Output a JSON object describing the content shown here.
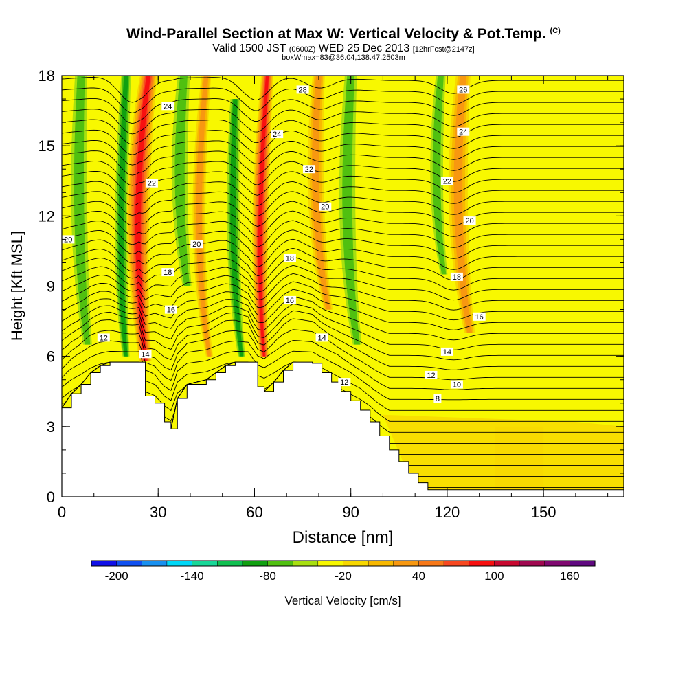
{
  "header": {
    "title": "Wind-Parallel Section at Max W: Vertical Velocity & Pot.Temp.",
    "title_mark": "(C)",
    "subtitle_a": "Valid 1500 JST",
    "subtitle_b": "(0600Z)",
    "subtitle_c": "WED 25 Dec 2013",
    "subtitle_d": "[12hrFcst@2147z]",
    "subtitle2": "boxWmax=83@36.04,138.47,2503m"
  },
  "chart_data": {
    "type": "heatmap",
    "xlabel": "Distance [nm]",
    "ylabel": "Height [Kft MSL]",
    "xlim": [
      0,
      175
    ],
    "ylim": [
      0,
      18
    ],
    "xticks": [
      "0",
      "30",
      "60",
      "90",
      "120",
      "150"
    ],
    "yticks": [
      "0",
      "3",
      "6",
      "9",
      "12",
      "15",
      "18"
    ],
    "colorbar": {
      "label": "Vertical Velocity [cm/s]",
      "ticks": [
        "-200",
        "-140",
        "-80",
        "-20",
        "40",
        "100",
        "160"
      ],
      "colors": [
        "#1010e8",
        "#1050f0",
        "#1890f0",
        "#00d8f8",
        "#18d898",
        "#10c050",
        "#10a010",
        "#50c010",
        "#a8e010",
        "#f8f800",
        "#f8d800",
        "#f8b800",
        "#f89810",
        "#f87818",
        "#f84820",
        "#f81010",
        "#c80830",
        "#a00850",
        "#800870",
        "#600880"
      ]
    },
    "terrain_kft": [
      [
        0,
        3.8
      ],
      [
        3,
        4.4
      ],
      [
        6,
        4.8
      ],
      [
        9,
        5.3
      ],
      [
        12,
        5.6
      ],
      [
        15,
        5.75
      ],
      [
        18,
        5.75
      ],
      [
        24,
        5.75
      ],
      [
        26,
        4.3
      ],
      [
        29,
        4.0
      ],
      [
        32,
        3.2
      ],
      [
        34,
        2.9
      ],
      [
        36,
        4.2
      ],
      [
        39,
        4.8
      ],
      [
        45,
        5.0
      ],
      [
        48,
        5.3
      ],
      [
        51,
        5.6
      ],
      [
        54,
        5.75
      ],
      [
        58,
        5.75
      ],
      [
        61,
        4.7
      ],
      [
        63,
        4.5
      ],
      [
        66,
        4.9
      ],
      [
        69,
        5.4
      ],
      [
        72,
        5.75
      ],
      [
        78,
        5.7
      ],
      [
        81,
        5.3
      ],
      [
        84,
        4.9
      ],
      [
        87,
        4.5
      ],
      [
        90,
        4.1
      ],
      [
        93,
        3.7
      ],
      [
        96,
        3.2
      ],
      [
        99,
        2.6
      ],
      [
        102,
        2.0
      ],
      [
        105,
        1.5
      ],
      [
        108,
        1.0
      ],
      [
        111,
        0.6
      ],
      [
        114,
        0.3
      ],
      [
        117,
        0.3
      ],
      [
        175,
        0.3
      ]
    ],
    "updrafts": [
      {
        "x": [
          27,
          21,
          26
        ],
        "y": [
          18,
          12,
          5.8
        ],
        "level": "strong",
        "w": 7
      },
      {
        "x": [
          64,
          60,
          63
        ],
        "y": [
          18,
          10.5,
          6
        ],
        "level": "strong",
        "w": 5
      },
      {
        "x": [
          125,
          121,
          127
        ],
        "y": [
          18,
          12,
          7
        ],
        "level": "moderate",
        "w": 6
      },
      {
        "x": [
          80,
          77,
          83
        ],
        "y": [
          18,
          12,
          8
        ],
        "level": "moderate",
        "w": 5
      },
      {
        "x": [
          45,
          40,
          46
        ],
        "y": [
          18,
          11,
          6
        ],
        "level": "moderate",
        "w": 4
      }
    ],
    "downdrafts": [
      {
        "x": [
          6,
          4,
          8
        ],
        "y": [
          18,
          11,
          6.5
        ],
        "level": "moderate",
        "w": 5
      },
      {
        "x": [
          20,
          17,
          20
        ],
        "y": [
          18,
          10,
          6
        ],
        "level": "strong",
        "w": 4
      },
      {
        "x": [
          38,
          35,
          39
        ],
        "y": [
          18,
          13,
          9
        ],
        "level": "moderate",
        "w": 5
      },
      {
        "x": [
          54,
          52,
          56
        ],
        "y": [
          17,
          10,
          6
        ],
        "level": "strong",
        "w": 4
      },
      {
        "x": [
          90,
          87,
          92
        ],
        "y": [
          18,
          11,
          6.5
        ],
        "level": "moderate",
        "w": 5
      },
      {
        "x": [
          118,
          115,
          119
        ],
        "y": [
          18,
          13,
          9.5
        ],
        "level": "moderate",
        "w": 4
      }
    ],
    "isentrope_labels": [
      {
        "text": "28",
        "x": 75,
        "y": 17.4
      },
      {
        "text": "26",
        "x": 125,
        "y": 17.4
      },
      {
        "text": "24",
        "x": 33,
        "y": 16.7
      },
      {
        "text": "24",
        "x": 67,
        "y": 15.5
      },
      {
        "text": "24",
        "x": 125,
        "y": 15.6
      },
      {
        "text": "22",
        "x": 28,
        "y": 13.4
      },
      {
        "text": "22",
        "x": 77,
        "y": 14.0
      },
      {
        "text": "22",
        "x": 120,
        "y": 13.5
      },
      {
        "text": "20",
        "x": 2,
        "y": 11.0
      },
      {
        "text": "20",
        "x": 42,
        "y": 10.8
      },
      {
        "text": "20",
        "x": 82,
        "y": 12.4
      },
      {
        "text": "20",
        "x": 127,
        "y": 11.8
      },
      {
        "text": "18",
        "x": 33,
        "y": 9.6
      },
      {
        "text": "18",
        "x": 71,
        "y": 10.2
      },
      {
        "text": "18",
        "x": 123,
        "y": 9.4
      },
      {
        "text": "16",
        "x": 34,
        "y": 8.0
      },
      {
        "text": "16",
        "x": 71,
        "y": 8.4
      },
      {
        "text": "16",
        "x": 130,
        "y": 7.7
      },
      {
        "text": "14",
        "x": 26,
        "y": 6.1
      },
      {
        "text": "14",
        "x": 81,
        "y": 6.8
      },
      {
        "text": "14",
        "x": 120,
        "y": 6.2
      },
      {
        "text": "12",
        "x": 13,
        "y": 6.8
      },
      {
        "text": "12",
        "x": 88,
        "y": 4.9
      },
      {
        "text": "12",
        "x": 115,
        "y": 5.2
      },
      {
        "text": "10",
        "x": 123,
        "y": 4.8
      },
      {
        "text": "8",
        "x": 117,
        "y": 4.2
      }
    ]
  }
}
